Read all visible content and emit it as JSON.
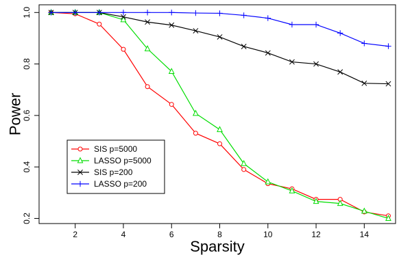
{
  "chart_data": {
    "type": "line",
    "title": "",
    "xlabel": "Sparsity",
    "ylabel": "Power",
    "xlim": [
      0.5,
      15.3
    ],
    "ylim": [
      0.18,
      1.03
    ],
    "x_ticks": [
      2,
      4,
      6,
      8,
      10,
      12,
      14
    ],
    "y_ticks": [
      0.2,
      0.4,
      0.6,
      0.8,
      1.0
    ],
    "y_tick_labels": [
      "0.2",
      "0.4",
      "0.6",
      "0.8",
      "1.0"
    ],
    "grid": false,
    "legend_position": "bottom-left",
    "x": [
      1,
      2,
      3,
      4,
      5,
      6,
      7,
      8,
      9,
      10,
      11,
      12,
      13,
      14,
      15
    ],
    "series": [
      {
        "name": "SIS p=5000",
        "color": "#ff0000",
        "marker": "circle",
        "values": [
          1.0,
          0.995,
          0.955,
          0.857,
          0.712,
          0.643,
          0.531,
          0.49,
          0.39,
          0.335,
          0.315,
          0.274,
          0.274,
          0.225,
          0.21
        ]
      },
      {
        "name": "LASSO p=5000",
        "color": "#00dd00",
        "marker": "triangle",
        "values": [
          1.0,
          1.0,
          1.0,
          0.972,
          0.859,
          0.771,
          0.608,
          0.545,
          0.413,
          0.342,
          0.307,
          0.266,
          0.258,
          0.228,
          0.2
        ]
      },
      {
        "name": "SIS p=200",
        "color": "#000000",
        "marker": "cross",
        "values": [
          1.0,
          1.0,
          1.0,
          0.983,
          0.963,
          0.951,
          0.929,
          0.905,
          0.868,
          0.843,
          0.808,
          0.8,
          0.769,
          0.725,
          0.723
        ]
      },
      {
        "name": "LASSO p=200",
        "color": "#0000ff",
        "marker": "plus",
        "values": [
          1.0,
          1.0,
          1.0,
          1.0,
          1.0,
          1.0,
          0.998,
          0.997,
          0.989,
          0.978,
          0.953,
          0.953,
          0.92,
          0.88,
          0.869
        ]
      }
    ]
  }
}
